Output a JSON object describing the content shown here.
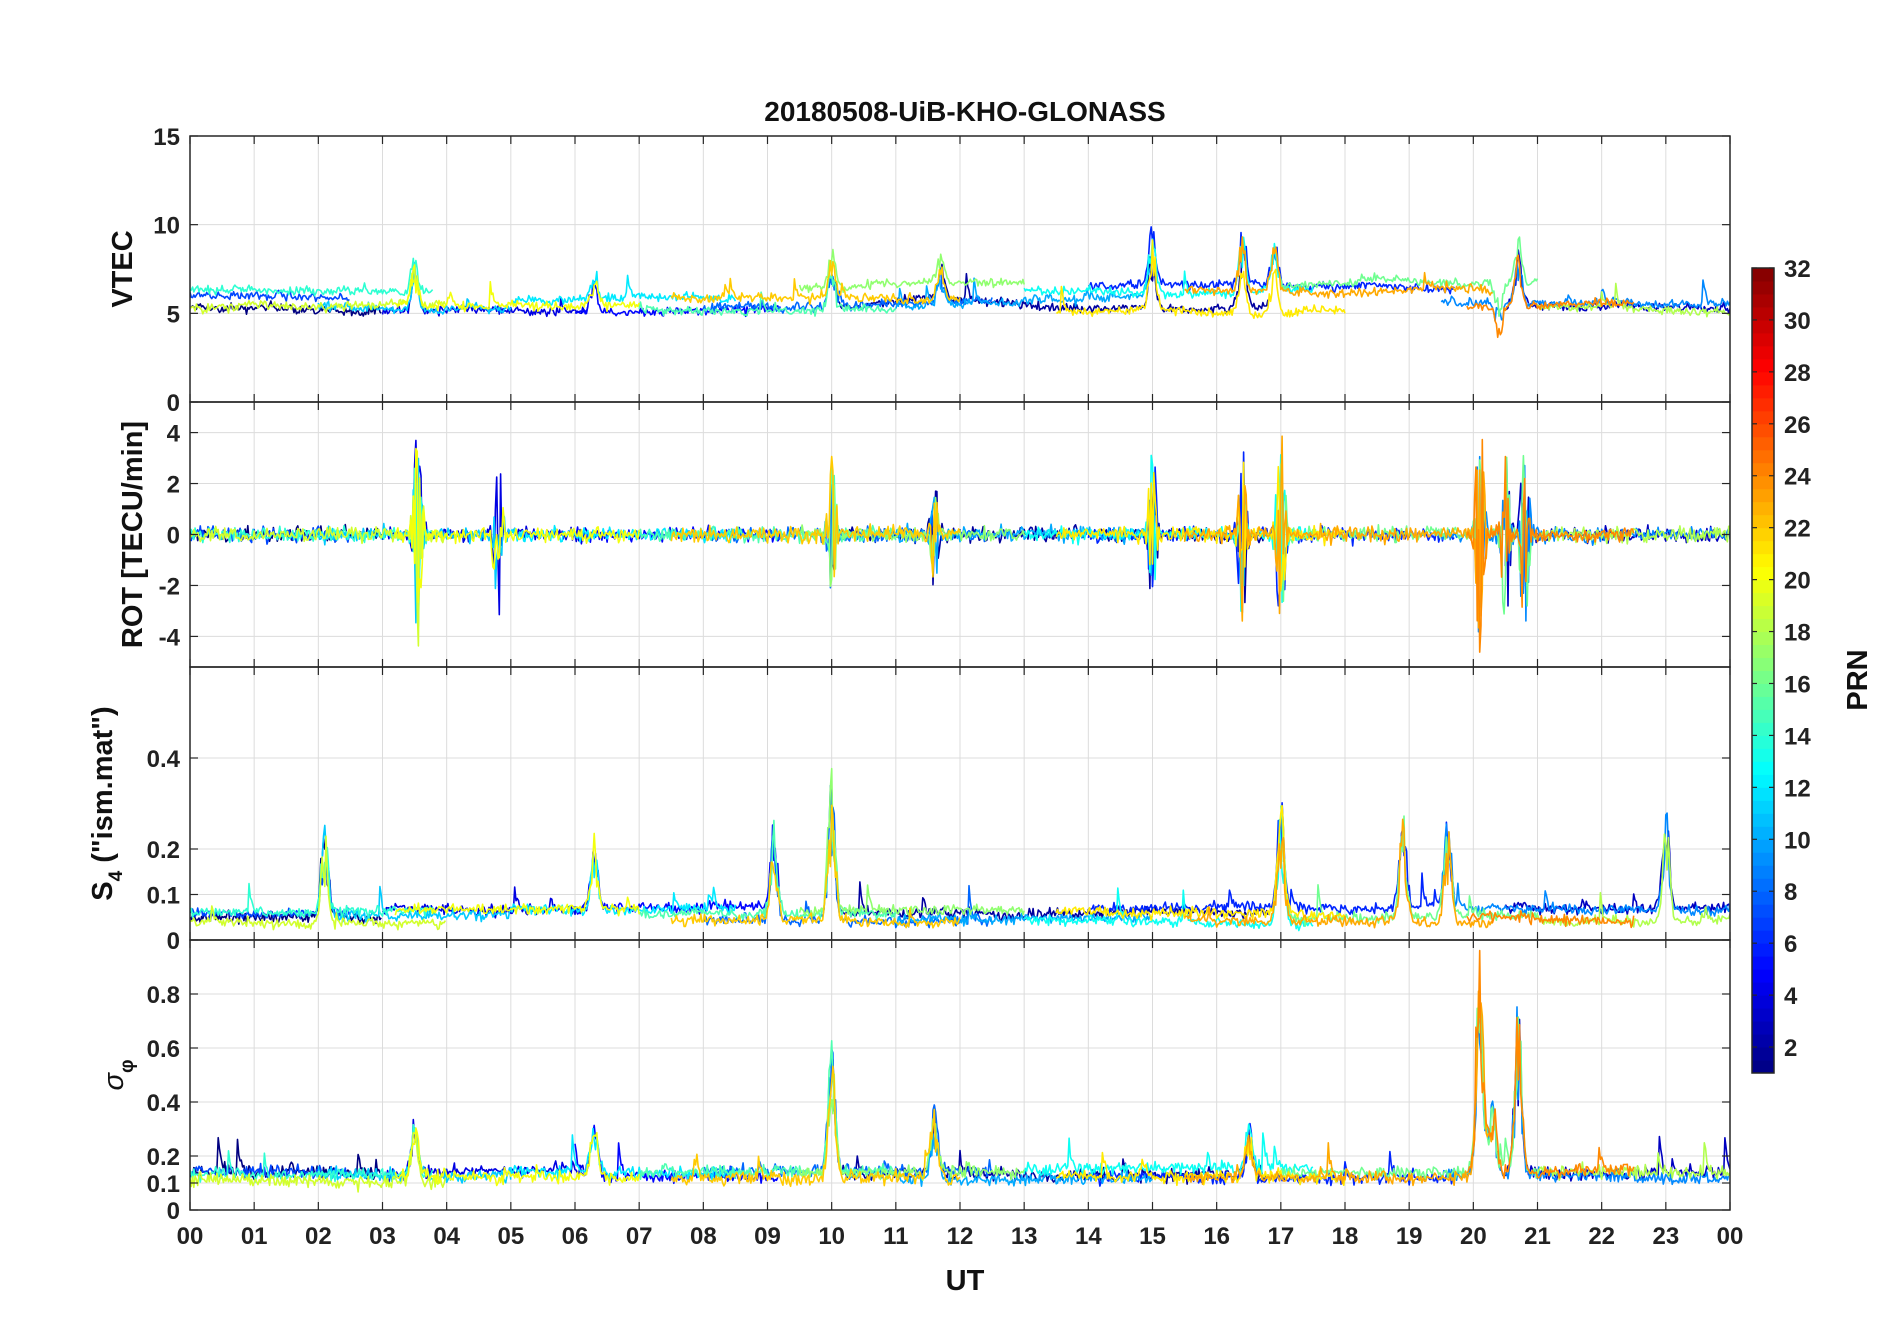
{
  "chart_data": {
    "type": "line",
    "title": "20180508-UiB-KHO-GLONASS",
    "xlabel": "UT",
    "x_range_hours": [
      0,
      24
    ],
    "x_ticks": [
      "00",
      "01",
      "02",
      "03",
      "04",
      "05",
      "06",
      "07",
      "08",
      "09",
      "10",
      "11",
      "12",
      "13",
      "14",
      "15",
      "16",
      "17",
      "18",
      "19",
      "20",
      "21",
      "22",
      "23",
      "00"
    ],
    "grid": true,
    "colorbar": {
      "label": "PRN",
      "colormap": "jet",
      "range": [
        1,
        32
      ],
      "ticks": [
        "2",
        "4",
        "6",
        "8",
        "10",
        "12",
        "14",
        "16",
        "18",
        "20",
        "22",
        "24",
        "26",
        "28",
        "30",
        "32"
      ],
      "tick_values": [
        2,
        4,
        6,
        8,
        10,
        12,
        14,
        16,
        18,
        20,
        22,
        24,
        26,
        28,
        30,
        32
      ]
    },
    "panels": [
      {
        "id": "vtec",
        "ylabel": "VTEC",
        "ylim": [
          0,
          15
        ],
        "yticks": [
          "0",
          "5",
          "10",
          "15"
        ],
        "ytick_values": [
          0,
          5,
          10,
          15
        ],
        "baseline": 5.8,
        "noise": 0.25,
        "drift": 0.8,
        "events": [
          {
            "t": 3.5,
            "amp": 2.5
          },
          {
            "t": 6.3,
            "amp": 2.0
          },
          {
            "t": 10.0,
            "amp": 2.5
          },
          {
            "t": 11.7,
            "amp": 2.0
          },
          {
            "t": 15.0,
            "amp": 4.0
          },
          {
            "t": 16.4,
            "amp": 3.5
          },
          {
            "t": 16.9,
            "amp": 3.0
          },
          {
            "t": 20.4,
            "amp": -2.0
          },
          {
            "t": 20.7,
            "amp": 3.0
          }
        ]
      },
      {
        "id": "rot",
        "ylabel": "ROT [TECU/min]",
        "ylim": [
          -5.2,
          5.2
        ],
        "yticks": [
          "-4",
          "-2",
          "0",
          "2",
          "4"
        ],
        "ytick_values": [
          -4,
          -2,
          0,
          2,
          4
        ],
        "baseline": 0,
        "noise": 0.3,
        "drift": 0,
        "events": [
          {
            "t": 3.55,
            "amp": 4.6
          },
          {
            "t": 4.8,
            "amp": 3.3
          },
          {
            "t": 10.0,
            "amp": 3.0
          },
          {
            "t": 11.6,
            "amp": 2.0
          },
          {
            "t": 15.0,
            "amp": 3.3
          },
          {
            "t": 16.4,
            "amp": 3.5
          },
          {
            "t": 17.0,
            "amp": 4.5
          },
          {
            "t": 20.1,
            "amp": 5.0
          },
          {
            "t": 20.5,
            "amp": 4.0
          },
          {
            "t": 20.8,
            "amp": 4.5
          }
        ]
      },
      {
        "id": "s4",
        "ylabel": "S4 (\"ism.mat\")",
        "ylabel_main": "S",
        "ylabel_sub": "4",
        "ylabel_rest": " (\"ism.mat\")",
        "ylim": [
          0,
          0.6
        ],
        "yticks": [
          "0",
          "0.1",
          "0.2",
          "0.4"
        ],
        "ytick_values": [
          0,
          0.1,
          0.2,
          0.4
        ],
        "baseline": 0.055,
        "noise": 0.012,
        "drift": 0.015,
        "events": [
          {
            "t": 2.1,
            "amp": 0.2
          },
          {
            "t": 6.3,
            "amp": 0.15
          },
          {
            "t": 9.1,
            "amp": 0.22
          },
          {
            "t": 10.0,
            "amp": 0.32
          },
          {
            "t": 17.0,
            "amp": 0.25
          },
          {
            "t": 18.9,
            "amp": 0.24
          },
          {
            "t": 19.6,
            "amp": 0.22
          },
          {
            "t": 23.0,
            "amp": 0.25
          }
        ]
      },
      {
        "id": "sigma_phi",
        "ylabel": "σφ",
        "ylabel_main": "σ",
        "ylabel_sub": "φ",
        "ylim": [
          0,
          1
        ],
        "yticks": [
          "0",
          "0.1",
          "0.2",
          "0.4",
          "0.6",
          "0.8"
        ],
        "ytick_values": [
          0,
          0.1,
          0.2,
          0.4,
          0.6,
          0.8
        ],
        "baseline": 0.13,
        "noise": 0.025,
        "drift": 0.02,
        "events": [
          {
            "t": 3.5,
            "amp": 0.22
          },
          {
            "t": 6.3,
            "amp": 0.22
          },
          {
            "t": 10.0,
            "amp": 0.5
          },
          {
            "t": 11.6,
            "amp": 0.25
          },
          {
            "t": 16.5,
            "amp": 0.18
          },
          {
            "t": 20.1,
            "amp": 0.85
          },
          {
            "t": 20.3,
            "amp": 0.3
          },
          {
            "t": 20.7,
            "amp": 0.65
          }
        ]
      }
    ],
    "series": [
      {
        "name": "PRN 1",
        "prn": 1,
        "start": 0.0,
        "end": 3.0
      },
      {
        "name": "PRN 2",
        "prn": 2,
        "start": 10.0,
        "end": 16.8
      },
      {
        "name": "PRN 3",
        "prn": 3,
        "start": 20.5,
        "end": 24.0
      },
      {
        "name": "PRN 4",
        "prn": 4,
        "start": 3.0,
        "end": 6.2
      },
      {
        "name": "PRN 5",
        "prn": 5,
        "start": 6.0,
        "end": 9.2
      },
      {
        "name": "PRN 6",
        "prn": 6,
        "start": 14.0,
        "end": 19.7
      },
      {
        "name": "PRN 7",
        "prn": 7,
        "start": 0.0,
        "end": 2.5
      },
      {
        "name": "PRN 8",
        "prn": 8,
        "start": 8.0,
        "end": 12.5
      },
      {
        "name": "PRN 9",
        "prn": 9,
        "start": 19.5,
        "end": 24.0
      },
      {
        "name": "PRN 10",
        "prn": 10,
        "start": 11.0,
        "end": 15.0
      },
      {
        "name": "PRN 11",
        "prn": 11,
        "start": 2.0,
        "end": 5.0
      },
      {
        "name": "PRN 12",
        "prn": 12,
        "start": 5.0,
        "end": 8.5
      },
      {
        "name": "PRN 13",
        "prn": 13,
        "start": 13.0,
        "end": 17.5
      },
      {
        "name": "PRN 14",
        "prn": 14,
        "start": 0.0,
        "end": 3.8
      },
      {
        "name": "PRN 15",
        "prn": 15,
        "start": 7.0,
        "end": 11.0
      },
      {
        "name": "PRN 16",
        "prn": 16,
        "start": 17.0,
        "end": 21.0
      },
      {
        "name": "PRN 17",
        "prn": 17,
        "start": 9.5,
        "end": 13.0
      },
      {
        "name": "PRN 18",
        "prn": 18,
        "start": 21.0,
        "end": 24.0
      },
      {
        "name": "PRN 19",
        "prn": 19,
        "start": 0.0,
        "end": 4.0
      },
      {
        "name": "PRN 20",
        "prn": 20,
        "start": 3.2,
        "end": 7.0
      },
      {
        "name": "PRN 21",
        "prn": 21,
        "start": 13.5,
        "end": 18.0
      },
      {
        "name": "PRN 22",
        "prn": 22,
        "start": 7.5,
        "end": 12.0
      },
      {
        "name": "PRN 23",
        "prn": 23,
        "start": 15.5,
        "end": 20.3
      },
      {
        "name": "PRN 24",
        "prn": 24,
        "start": 19.9,
        "end": 22.5
      }
    ]
  }
}
